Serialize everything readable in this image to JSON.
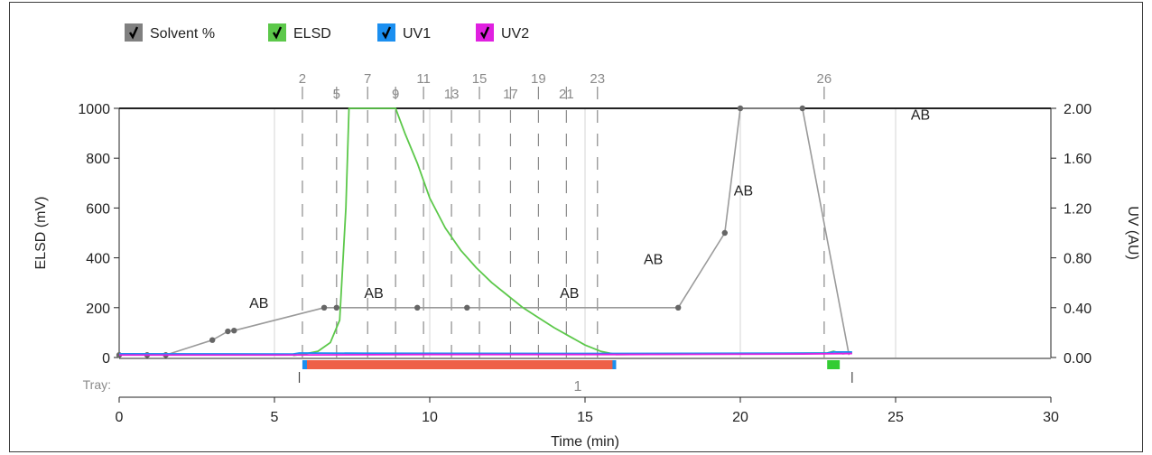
{
  "legend": [
    {
      "label": "Solvent %",
      "color": "#808080",
      "checked": true
    },
    {
      "label": "ELSD",
      "color": "#5cc84a",
      "checked": true
    },
    {
      "label": "UV1",
      "color": "#1b8ff0",
      "checked": true
    },
    {
      "label": "UV2",
      "color": "#e020e0",
      "checked": true
    }
  ],
  "chart_data": {
    "type": "line",
    "xlabel": "Time (min)",
    "ylabel_left": "ELSD (mV)",
    "ylabel_right": "UV (AU)",
    "xlim": [
      0,
      30
    ],
    "ylim_left": [
      0,
      1000
    ],
    "ylim_right": [
      0,
      2.0
    ],
    "x_ticks": [
      0,
      5,
      10,
      15,
      20,
      25,
      30
    ],
    "y_left_ticks": [
      0,
      200,
      400,
      600,
      800,
      1000
    ],
    "y_right_ticks": [
      "0.00",
      "0.40",
      "0.80",
      "1.20",
      "1.60",
      "2.00"
    ],
    "grid": true,
    "series": [
      {
        "name": "Solvent %",
        "color": "#9a9a9a",
        "points": [
          [
            0.0,
            10
          ],
          [
            0.9,
            10
          ],
          [
            1.5,
            10
          ],
          [
            3.0,
            70
          ],
          [
            3.5,
            105
          ],
          [
            3.7,
            108
          ],
          [
            6.6,
            200
          ],
          [
            7.0,
            200
          ],
          [
            7.2,
            200
          ],
          [
            9.6,
            200
          ],
          [
            11.2,
            200
          ],
          [
            18.0,
            200
          ],
          [
            19.5,
            500
          ],
          [
            20.0,
            1000
          ],
          [
            22.0,
            1000
          ],
          [
            23.5,
            10
          ]
        ],
        "markers": [
          [
            0.0,
            10
          ],
          [
            0.9,
            10
          ],
          [
            1.5,
            10
          ],
          [
            3.0,
            70
          ],
          [
            3.5,
            105
          ],
          [
            3.7,
            108
          ],
          [
            6.6,
            200
          ],
          [
            7.0,
            200
          ],
          [
            9.6,
            200
          ],
          [
            11.2,
            200
          ],
          [
            18.0,
            200
          ],
          [
            19.5,
            500
          ],
          [
            20.0,
            1000
          ],
          [
            22.0,
            1000
          ]
        ]
      },
      {
        "name": "ELSD",
        "color": "#5cc84a",
        "points": [
          [
            5.6,
            8
          ],
          [
            6.0,
            15
          ],
          [
            6.4,
            25
          ],
          [
            6.8,
            60
          ],
          [
            7.1,
            150
          ],
          [
            7.3,
            600
          ],
          [
            7.4,
            1000
          ],
          [
            8.9,
            1000
          ],
          [
            9.2,
            900
          ],
          [
            9.6,
            780
          ],
          [
            10.0,
            640
          ],
          [
            10.5,
            520
          ],
          [
            11.0,
            430
          ],
          [
            11.5,
            360
          ],
          [
            12.0,
            300
          ],
          [
            12.5,
            250
          ],
          [
            13.0,
            200
          ],
          [
            13.5,
            160
          ],
          [
            14.0,
            120
          ],
          [
            14.5,
            85
          ],
          [
            15.0,
            50
          ],
          [
            15.5,
            25
          ],
          [
            16.0,
            12
          ],
          [
            22.8,
            18
          ],
          [
            23.0,
            25
          ],
          [
            23.3,
            15
          ],
          [
            23.6,
            18
          ]
        ]
      },
      {
        "name": "UV1",
        "color": "#1b8ff0",
        "points": [
          [
            0.0,
            15
          ],
          [
            5.6,
            14
          ],
          [
            5.8,
            18
          ],
          [
            8.0,
            17
          ],
          [
            16.0,
            16
          ],
          [
            22.8,
            18
          ],
          [
            23.0,
            22
          ],
          [
            23.6,
            22
          ]
        ]
      },
      {
        "name": "UV2",
        "color": "#e020e0",
        "points": [
          [
            0.0,
            10
          ],
          [
            5.0,
            10
          ],
          [
            10.0,
            12
          ],
          [
            16.0,
            12
          ],
          [
            22.0,
            14
          ],
          [
            23.6,
            16
          ]
        ]
      }
    ],
    "fractions": [
      {
        "label": "2",
        "x": 5.9
      },
      {
        "label": "5",
        "x": 7.0
      },
      {
        "label": "7",
        "x": 8.0
      },
      {
        "label": "9",
        "x": 8.9
      },
      {
        "label": "11",
        "x": 9.8
      },
      {
        "label": "13",
        "x": 10.7
      },
      {
        "label": "15",
        "x": 11.6
      },
      {
        "label": "17",
        "x": 12.6
      },
      {
        "label": "19",
        "x": 13.5
      },
      {
        "label": "21",
        "x": 14.4
      },
      {
        "label": "23",
        "x": 15.4
      },
      {
        "label": "26",
        "x": 22.7
      }
    ],
    "fraction_labels_raised": [
      "2",
      "7",
      "11",
      "15",
      "19",
      "23",
      "26"
    ],
    "annotations": [
      {
        "text": "AB",
        "x": 4.5,
        "y": 200
      },
      {
        "text": "AB",
        "x": 8.2,
        "y": 240
      },
      {
        "text": "AB",
        "x": 14.5,
        "y": 240
      },
      {
        "text": "AB",
        "x": 17.2,
        "y": 375
      },
      {
        "text": "AB",
        "x": 20.1,
        "y": 650
      },
      {
        "text": "AB",
        "x": 25.8,
        "y": 955
      }
    ],
    "tray": {
      "label": "Tray:",
      "number": "1",
      "bars": [
        {
          "start": 5.9,
          "end": 16.0,
          "color": "#ee6048",
          "edge_color": "#1b8ff0"
        },
        {
          "start": 22.8,
          "end": 23.2,
          "color": "#33cc33",
          "edge_color": "#33cc33"
        }
      ],
      "markers": [
        5.8,
        23.6
      ]
    }
  }
}
